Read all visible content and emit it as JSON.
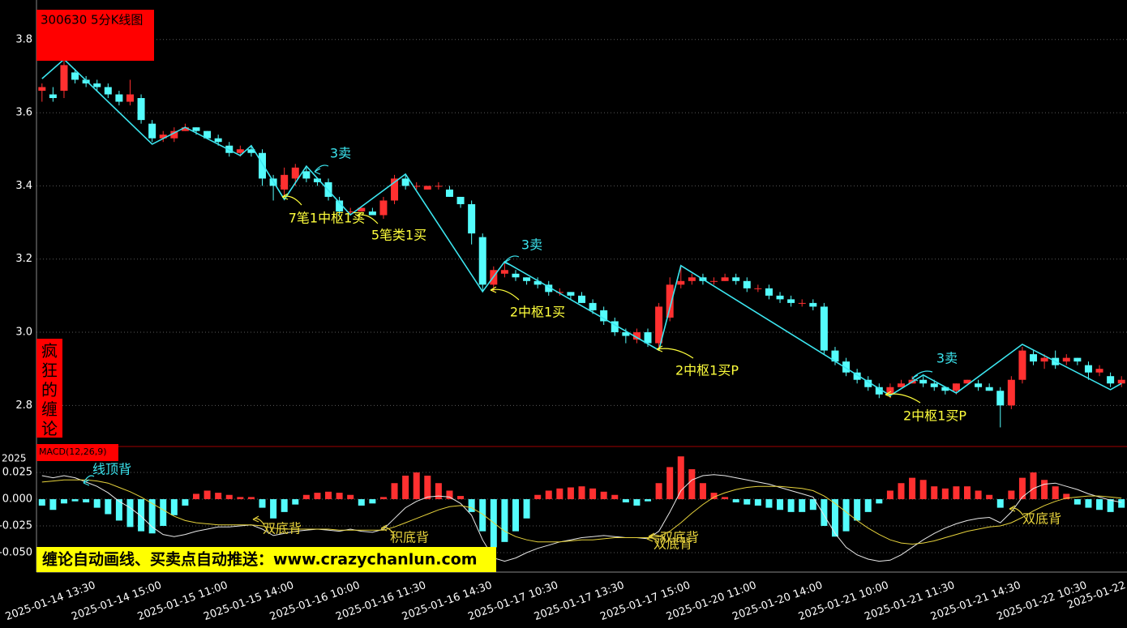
{
  "chart_data": [
    {
      "type": "candlestick",
      "title": "300630 5分K线图",
      "side_label": "疯狂的缠论",
      "categories": [
        null,
        "2025-01-14 13:30",
        null,
        null,
        null,
        null,
        null,
        "2025-01-14 15:00",
        null,
        null,
        null,
        null,
        null,
        "2025-01-15 11:00",
        null,
        null,
        null,
        null,
        null,
        "2025-01-15 14:00",
        null,
        null,
        null,
        null,
        null,
        "2025-01-16 10:00",
        null,
        null,
        null,
        null,
        null,
        "2025-01-16 11:30",
        null,
        null,
        null,
        null,
        null,
        "2025-01-16 14:30",
        null,
        null,
        null,
        null,
        null,
        "2025-01-17 10:30",
        null,
        null,
        null,
        null,
        null,
        "2025-01-17 13:30",
        null,
        null,
        null,
        null,
        null,
        "2025-01-17 15:00",
        null,
        null,
        null,
        null,
        null,
        "2025-01-20 11:00",
        null,
        null,
        null,
        null,
        null,
        "2025-01-20 14:00",
        null,
        null,
        null,
        null,
        null,
        "2025-01-21 10:00",
        null,
        null,
        null,
        null,
        null,
        "2025-01-21 11:30",
        null,
        null,
        null,
        null,
        null,
        "2025-01-21 14:30",
        null,
        null,
        null,
        null,
        null,
        "2025-01-22 10:30",
        null,
        null,
        null,
        null,
        null,
        "2025-01-22",
        null
      ],
      "open": [
        3.66,
        3.65,
        3.66,
        3.71,
        3.69,
        3.68,
        3.67,
        3.65,
        3.63,
        3.64,
        3.57,
        3.53,
        3.53,
        3.55,
        3.56,
        3.55,
        3.53,
        3.51,
        3.49,
        3.5,
        3.49,
        3.42,
        3.39,
        3.42,
        3.44,
        3.42,
        3.41,
        3.36,
        3.33,
        3.33,
        3.33,
        3.32,
        3.36,
        3.42,
        3.4,
        3.39,
        3.4,
        3.39,
        3.37,
        3.35,
        3.26,
        3.13,
        3.16,
        3.16,
        3.15,
        3.14,
        3.13,
        3.11,
        3.11,
        3.1,
        3.08,
        3.06,
        3.03,
        3.0,
        2.98,
        3.0,
        2.97,
        3.04,
        3.13,
        3.14,
        3.15,
        3.14,
        3.14,
        3.15,
        3.14,
        3.12,
        3.12,
        3.1,
        3.09,
        3.08,
        3.08,
        3.07,
        2.95,
        2.92,
        2.89,
        2.87,
        2.85,
        2.83,
        2.85,
        2.86,
        2.87,
        2.86,
        2.85,
        2.84,
        2.86,
        2.86,
        2.85,
        2.84,
        2.8,
        2.87,
        2.94,
        2.92,
        2.93,
        2.92,
        2.93,
        2.91,
        2.89,
        2.88,
        2.86
      ],
      "close": [
        3.67,
        3.64,
        3.73,
        3.69,
        3.68,
        3.67,
        3.65,
        3.63,
        3.65,
        3.58,
        3.53,
        3.54,
        3.55,
        3.56,
        3.55,
        3.53,
        3.52,
        3.49,
        3.5,
        3.49,
        3.42,
        3.4,
        3.43,
        3.45,
        3.42,
        3.41,
        3.37,
        3.33,
        3.33,
        3.34,
        3.32,
        3.36,
        3.42,
        3.4,
        3.4,
        3.4,
        3.4,
        3.37,
        3.35,
        3.27,
        3.13,
        3.17,
        3.17,
        3.15,
        3.14,
        3.13,
        3.11,
        3.11,
        3.1,
        3.08,
        3.06,
        3.03,
        3.0,
        2.99,
        3.0,
        2.97,
        3.07,
        3.13,
        3.14,
        3.15,
        3.14,
        3.14,
        3.15,
        3.14,
        3.12,
        3.12,
        3.1,
        3.09,
        3.08,
        3.08,
        3.07,
        2.95,
        2.92,
        2.89,
        2.87,
        2.85,
        2.83,
        2.85,
        2.86,
        2.87,
        2.86,
        2.85,
        2.84,
        2.86,
        2.87,
        2.85,
        2.84,
        2.8,
        2.87,
        2.95,
        2.92,
        2.93,
        2.91,
        2.93,
        2.92,
        2.89,
        2.9,
        2.86,
        2.87
      ],
      "low": [
        3.63,
        3.63,
        3.64,
        3.68,
        3.67,
        3.66,
        3.64,
        3.62,
        3.62,
        3.57,
        3.52,
        3.52,
        3.52,
        3.55,
        3.54,
        3.53,
        3.51,
        3.48,
        3.48,
        3.48,
        3.4,
        3.36,
        3.37,
        3.4,
        3.41,
        3.4,
        3.36,
        3.32,
        3.32,
        3.33,
        3.32,
        3.31,
        3.35,
        3.39,
        3.39,
        3.39,
        3.39,
        3.37,
        3.34,
        3.24,
        3.11,
        3.11,
        3.15,
        3.14,
        3.13,
        3.12,
        3.1,
        3.1,
        3.09,
        3.08,
        3.05,
        3.02,
        2.99,
        2.97,
        2.97,
        2.96,
        2.95,
        3.03,
        3.12,
        3.13,
        3.13,
        3.13,
        3.14,
        3.13,
        3.11,
        3.11,
        3.09,
        3.08,
        3.07,
        3.07,
        3.06,
        2.94,
        2.91,
        2.88,
        2.86,
        2.84,
        2.82,
        2.82,
        2.85,
        2.86,
        2.85,
        2.84,
        2.83,
        2.83,
        2.86,
        2.84,
        2.84,
        2.74,
        2.79,
        2.86,
        2.91,
        2.9,
        2.9,
        2.91,
        2.91,
        2.87,
        2.88,
        2.85,
        2.85
      ],
      "high": [
        3.68,
        3.67,
        3.75,
        3.72,
        3.7,
        3.69,
        3.68,
        3.66,
        3.69,
        3.65,
        3.58,
        3.55,
        3.56,
        3.57,
        3.56,
        3.55,
        3.54,
        3.52,
        3.51,
        3.51,
        3.5,
        3.43,
        3.45,
        3.46,
        3.45,
        3.42,
        3.42,
        3.37,
        3.34,
        3.34,
        3.34,
        3.37,
        3.43,
        3.43,
        3.41,
        3.4,
        3.41,
        3.4,
        3.37,
        3.36,
        3.27,
        3.18,
        3.19,
        3.17,
        3.15,
        3.15,
        3.14,
        3.12,
        3.11,
        3.11,
        3.09,
        3.07,
        3.04,
        3.01,
        3.01,
        3.01,
        3.08,
        3.15,
        3.18,
        3.16,
        3.16,
        3.15,
        3.16,
        3.16,
        3.15,
        3.13,
        3.13,
        3.11,
        3.1,
        3.09,
        3.09,
        3.08,
        2.96,
        2.93,
        2.9,
        2.88,
        2.86,
        2.86,
        2.87,
        2.88,
        2.88,
        2.87,
        2.85,
        2.86,
        2.87,
        2.87,
        2.86,
        2.85,
        2.88,
        2.96,
        2.95,
        2.94,
        2.95,
        2.94,
        2.93,
        2.92,
        2.91,
        2.89,
        2.88
      ],
      "up_color": "#ff3030",
      "down_color": "#54fcfc",
      "ylim": [
        2.69,
        3.908
      ],
      "yticks": [
        2.8,
        {
          "value": 3,
          "label": "3.0"
        },
        3.2,
        3.4,
        3.6,
        3.8
      ],
      "grid": true,
      "bi": {
        "color": "#3ce6f0",
        "x": [
          0,
          2,
          10,
          13,
          18,
          19,
          22,
          24,
          28,
          33,
          40,
          42,
          56,
          58,
          77,
          80,
          83,
          89,
          97,
          98
        ],
        "y": [
          3.693,
          3.746,
          3.514,
          3.56,
          3.483,
          3.51,
          3.363,
          3.454,
          3.321,
          3.432,
          3.111,
          3.193,
          2.951,
          3.182,
          2.827,
          2.883,
          2.834,
          2.967,
          2.843,
          2.86
        ]
      },
      "annotations": [
        {
          "text": "3卖",
          "color": "#3ce6f0"
        },
        {
          "text": "7笔1中枢1买",
          "color": "#ffff3c"
        },
        {
          "text": "5笔类1买",
          "color": "#ffff3c"
        },
        {
          "text": "3卖",
          "color": "#3ce6f0"
        },
        {
          "text": "2中枢1买",
          "color": "#ffff3c"
        },
        {
          "text": "2中枢1买P",
          "color": "#ffff3c"
        },
        {
          "text": "3卖",
          "color": "#3ce6f0"
        },
        {
          "text": "2中枢1买P",
          "color": "#ffff3c"
        }
      ]
    },
    {
      "type": "macd",
      "title": "MACD(12,26,9)",
      "corner_label": "2025",
      "ylim": [
        -0.0674,
        0.0485
      ],
      "yticks": [
        {
          "value": -0.05,
          "label": "-0.050"
        },
        -0.025,
        {
          "value": 0,
          "label": "0.000"
        },
        0.025
      ],
      "grid": true,
      "histogram": {
        "up_color": "#ff3030",
        "down_color": "#54fcfc",
        "values": [
          -0.006,
          -0.01,
          -0.004,
          -0.002,
          -0.003,
          -0.008,
          -0.014,
          -0.02,
          -0.026,
          -0.03,
          -0.032,
          -0.025,
          -0.015,
          -0.006,
          0.005,
          0.008,
          0.006,
          0.004,
          0.002,
          0.002,
          -0.008,
          -0.018,
          -0.012,
          -0.005,
          0.004,
          0.006,
          0.007,
          0.006,
          0.004,
          -0.006,
          -0.004,
          0.002,
          0.015,
          0.022,
          0.025,
          0.022,
          0.015,
          0.008,
          0.003,
          -0.012,
          -0.03,
          -0.045,
          -0.04,
          -0.03,
          -0.018,
          0.004,
          0.008,
          0.01,
          0.011,
          0.012,
          0.01,
          0.007,
          0.004,
          -0.003,
          -0.006,
          -0.002,
          0.015,
          0.03,
          0.04,
          0.028,
          0.015,
          0.006,
          0.002,
          -0.003,
          -0.005,
          -0.006,
          -0.008,
          -0.01,
          -0.012,
          -0.012,
          -0.01,
          -0.025,
          -0.035,
          -0.03,
          -0.02,
          -0.012,
          -0.004,
          0.008,
          0.015,
          0.02,
          0.018,
          0.012,
          0.01,
          0.012,
          0.012,
          0.008,
          0.004,
          -0.008,
          0.008,
          0.02,
          0.025,
          0.018,
          0.012,
          0.005,
          -0.005,
          -0.008,
          -0.01,
          -0.012,
          -0.008
        ]
      },
      "lines": [
        {
          "color": "#e8e8e8",
          "values": [
            0.022,
            0.02,
            0.022,
            0.02,
            0.016,
            0.012,
            0.006,
            -0.002,
            -0.008,
            -0.016,
            -0.026,
            -0.033,
            -0.035,
            -0.033,
            -0.03,
            -0.028,
            -0.026,
            -0.026,
            -0.025,
            -0.024,
            -0.028,
            -0.034,
            -0.032,
            -0.03,
            -0.029,
            -0.028,
            -0.029,
            -0.03,
            -0.028,
            -0.03,
            -0.031,
            -0.028,
            -0.018,
            -0.008,
            -0.002,
            0.002,
            0.003,
            0.002,
            -0.004,
            -0.015,
            -0.038,
            -0.055,
            -0.058,
            -0.055,
            -0.05,
            -0.046,
            -0.043,
            -0.04,
            -0.038,
            -0.036,
            -0.035,
            -0.034,
            -0.035,
            -0.036,
            -0.036,
            -0.037,
            -0.03,
            -0.012,
            0.008,
            0.018,
            0.022,
            0.023,
            0.022,
            0.02,
            0.018,
            0.016,
            0.014,
            0.011,
            0.008,
            0.005,
            0.002,
            -0.015,
            -0.032,
            -0.045,
            -0.052,
            -0.056,
            -0.058,
            -0.057,
            -0.052,
            -0.045,
            -0.038,
            -0.032,
            -0.027,
            -0.023,
            -0.02,
            -0.018,
            -0.017,
            -0.022,
            -0.012,
            0.002,
            0.01,
            0.014,
            0.015,
            0.012,
            0.009,
            0.005,
            0.002,
            -0.001,
            -0.003
          ]
        },
        {
          "color": "#e6d23c",
          "values": [
            0.016,
            0.017,
            0.018,
            0.018,
            0.018,
            0.017,
            0.015,
            0.011,
            0.007,
            0.002,
            -0.004,
            -0.01,
            -0.016,
            -0.02,
            -0.022,
            -0.023,
            -0.024,
            -0.024,
            -0.024,
            -0.024,
            -0.025,
            -0.027,
            -0.028,
            -0.028,
            -0.028,
            -0.028,
            -0.028,
            -0.029,
            -0.029,
            -0.029,
            -0.029,
            -0.029,
            -0.026,
            -0.022,
            -0.018,
            -0.014,
            -0.01,
            -0.007,
            -0.006,
            -0.008,
            -0.014,
            -0.022,
            -0.03,
            -0.035,
            -0.038,
            -0.04,
            -0.04,
            -0.04,
            -0.039,
            -0.038,
            -0.038,
            -0.037,
            -0.036,
            -0.036,
            -0.036,
            -0.036,
            -0.035,
            -0.03,
            -0.022,
            -0.013,
            -0.005,
            0.002,
            0.006,
            0.009,
            0.011,
            0.012,
            0.012,
            0.012,
            0.011,
            0.01,
            0.008,
            0.003,
            -0.004,
            -0.012,
            -0.02,
            -0.027,
            -0.033,
            -0.038,
            -0.041,
            -0.042,
            -0.041,
            -0.039,
            -0.036,
            -0.033,
            -0.03,
            -0.028,
            -0.026,
            -0.025,
            -0.022,
            -0.017,
            -0.011,
            -0.006,
            -0.002,
            0.001,
            0.002,
            0.003,
            0.003,
            0.002,
            0.001
          ]
        }
      ],
      "annotations": [
        {
          "text": "线顶背",
          "color": "#3ce6f0"
        },
        {
          "text": "双底背",
          "color": "#e6d23c"
        },
        {
          "text": "积底背",
          "color": "#e6d23c"
        },
        {
          "text": "双底背",
          "color": "#e6d23c"
        },
        {
          "text": "双底背",
          "color": "#e6d23c"
        },
        {
          "text": "双底背",
          "color": "#e6d23c"
        }
      ]
    }
  ],
  "banner": "缠论自动画线、买卖点自动推送：www.crazychanlun.com"
}
